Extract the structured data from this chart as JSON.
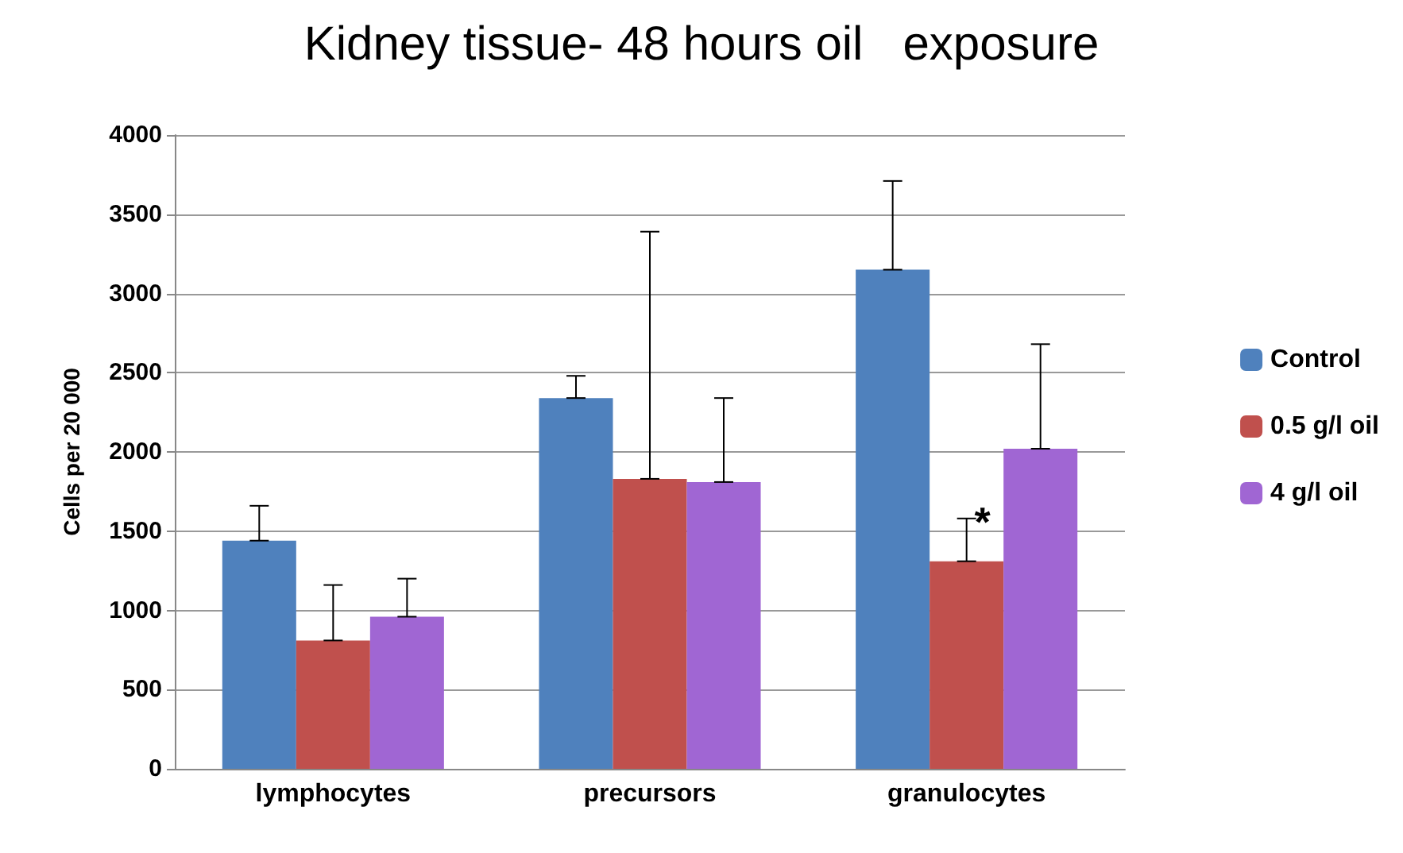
{
  "chart_data": {
    "type": "bar",
    "title": "Kidney tissue- 48 hours oil   exposure",
    "ylabel": "Cells per 20 000",
    "categories": [
      "lymphocytes",
      "precursors",
      "granulocytes"
    ],
    "series": [
      {
        "name": "Control",
        "color": "#4f81bd",
        "values": [
          1440,
          2340,
          3150
        ],
        "errors": [
          [
            1440,
            1660
          ],
          [
            2340,
            2480
          ],
          [
            3150,
            3710
          ]
        ]
      },
      {
        "name": "0.5 g/l oil",
        "color": "#c0504d",
        "values": [
          810,
          1830,
          1310
        ],
        "errors": [
          [
            810,
            1160
          ],
          [
            1830,
            3390
          ],
          [
            1310,
            1580
          ]
        ]
      },
      {
        "name": "4 g/l oil",
        "color": "#a066d3",
        "values": [
          960,
          1810,
          2020
        ],
        "errors": [
          [
            960,
            1200
          ],
          [
            1810,
            2340
          ],
          [
            2020,
            2680
          ]
        ]
      }
    ],
    "annotations": [
      {
        "text": "*",
        "x": "granulocytes",
        "y": 1580
      }
    ],
    "ylim": [
      0,
      4000
    ],
    "yticks": [
      0,
      500,
      1000,
      1500,
      2000,
      2500,
      3000,
      3500,
      4000
    ],
    "grid": "y",
    "legend": "right"
  }
}
